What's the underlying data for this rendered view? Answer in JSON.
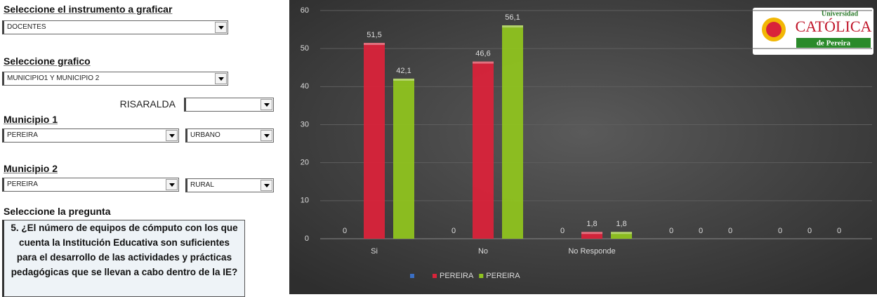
{
  "form": {
    "instrument_label": "Seleccione el instrumento a graficar",
    "instrument_value": "DOCENTES",
    "chart_label": "Seleccione grafico",
    "chart_value": "MUNICIPIO1 Y MUNICIPIO 2",
    "department_label": "RISARALDA",
    "municipality1_label": "Municipio 1",
    "municipality1_value": "PEREIRA",
    "zone1_value": "URBANO",
    "municipality2_label": "Municipio 2",
    "municipality2_value": "PEREIRA",
    "zone2_value": "RURAL",
    "question_label": "Seleccione la pregunta",
    "question_text": "5. ¿El número de equipos de cómputo con los que cuenta la Institución Educativa son suficientes para el desarrollo de las actividades y prácticas pedagógicas que se llevan a cabo dentro de la IE?"
  },
  "logo": [
    "Universidad",
    "CATÓLICA",
    "de Pereira"
  ],
  "chart_data": {
    "type": "bar",
    "categories": [
      "Si",
      "No",
      "No Responde",
      null,
      null
    ],
    "series": [
      {
        "color": "#3a6fc4",
        "values": [
          0,
          0,
          0,
          0,
          0
        ]
      },
      {
        "name": "PEREIRA",
        "color": "#d9233a",
        "values": [
          51.5,
          46.6,
          1.8,
          0,
          0
        ],
        "value_labels": [
          "51,5",
          "46,6",
          "1,8",
          "0",
          "0"
        ]
      },
      {
        "name": "PEREIRA",
        "color": "#8fc31f",
        "values": [
          42.1,
          56.1,
          1.8,
          0,
          0
        ],
        "value_labels": [
          "42,1",
          "56,1",
          "1,8",
          "0",
          "0"
        ]
      }
    ],
    "ylim": [
      0,
      60
    ],
    "yticks": [
      0,
      10,
      20,
      30,
      40,
      50,
      60
    ],
    "grid": true
  }
}
